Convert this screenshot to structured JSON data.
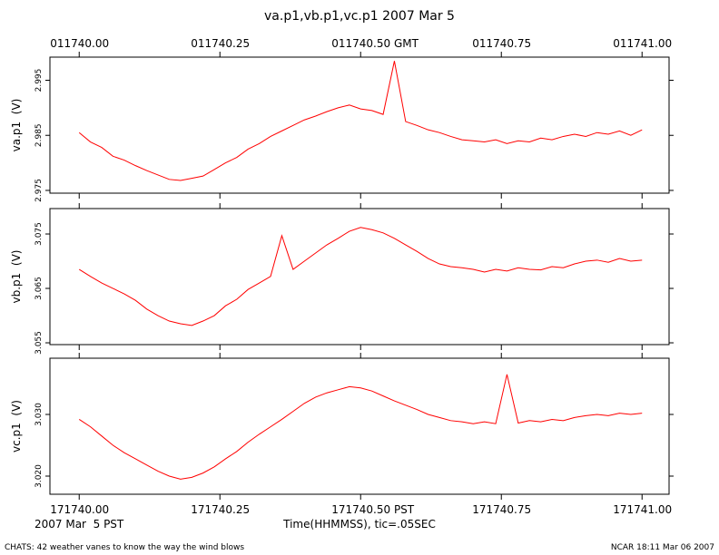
{
  "title": "va.p1,vb.p1,vc.p1 2007 Mar 5",
  "date_label": "2007 Mar  5 PST",
  "footer_left": "CHATS: 42 weather vanes to know the way the wind blows",
  "footer_right": "NCAR 18:11 Mar 06 2007",
  "chart_data": {
    "type": "line",
    "xlabel": "Time(HHMMSS), tic=.05SEC",
    "x": [
      171740,
      171740.02,
      171740.04,
      171740.06,
      171740.08,
      171740.1,
      171740.12,
      171740.14,
      171740.16,
      171740.18,
      171740.2,
      171740.22,
      171740.24,
      171740.26,
      171740.28,
      171740.3,
      171740.32,
      171740.34,
      171740.36,
      171740.38,
      171740.4,
      171740.42,
      171740.44,
      171740.46,
      171740.48,
      171740.5,
      171740.52,
      171740.54,
      171740.56,
      171740.58,
      171740.6,
      171740.62,
      171740.64,
      171740.66,
      171740.68,
      171740.7,
      171740.72,
      171740.74,
      171740.76,
      171740.78,
      171740.8,
      171740.82,
      171740.84,
      171740.86,
      171740.88,
      171740.9,
      171740.92,
      171740.94,
      171740.96,
      171740.98,
      171741
    ],
    "xlim": [
      171739.948,
      171741.048
    ],
    "xticks": [
      {
        "value": 171740,
        "label": "171740.00"
      },
      {
        "value": 171740.25,
        "label": "171740.25"
      },
      {
        "value": 171740.5,
        "label": "171740.50 PST"
      },
      {
        "value": 171740.75,
        "label": "171740.75"
      },
      {
        "value": 171741,
        "label": "171741.00"
      }
    ],
    "x2ticks": [
      {
        "value": 171740,
        "label": "011740.00"
      },
      {
        "value": 171740.25,
        "label": "011740.25"
      },
      {
        "value": 171740.5,
        "label": "011740.50 GMT"
      },
      {
        "value": 171740.75,
        "label": "011740.75"
      },
      {
        "value": 171741,
        "label": "011741.00"
      }
    ],
    "series": [
      {
        "name": "va.p1  (V)",
        "color": "#ff0000",
        "ylim": [
          2.9745,
          2.9992
        ],
        "yticks": [
          2.975,
          2.985,
          2.995
        ],
        "values": [
          2.9855,
          2.9838,
          2.9828,
          2.9812,
          2.9805,
          2.9795,
          2.9786,
          2.9778,
          2.977,
          2.9768,
          2.9772,
          2.9776,
          2.9788,
          2.98,
          2.981,
          2.9825,
          2.9835,
          2.9848,
          2.9858,
          2.9868,
          2.9878,
          2.9885,
          2.9893,
          2.99,
          2.9905,
          2.9898,
          2.9895,
          2.9888,
          2.9985,
          2.9875,
          2.9868,
          2.986,
          2.9855,
          2.9848,
          2.9842,
          2.984,
          2.9838,
          2.9842,
          2.9835,
          2.984,
          2.9838,
          2.9845,
          2.9842,
          2.9848,
          2.9852,
          2.9848,
          2.9855,
          2.9852,
          2.9858,
          2.985,
          2.986
        ]
      },
      {
        "name": "vb.p1  (V)",
        "color": "#ff0000",
        "ylim": [
          3.05467,
          3.07967
        ],
        "yticks": [
          3.055,
          3.065,
          3.075
        ],
        "values": [
          3.0685,
          3.0672,
          3.066,
          3.065,
          3.064,
          3.0628,
          3.0612,
          3.06,
          3.059,
          3.0585,
          3.0582,
          3.059,
          3.06,
          3.0618,
          3.063,
          3.0648,
          3.066,
          3.0672,
          3.0747,
          3.0685,
          3.07,
          3.0715,
          3.073,
          3.0742,
          3.0755,
          3.0762,
          3.0758,
          3.0752,
          3.0742,
          3.073,
          3.0718,
          3.0705,
          3.0695,
          3.069,
          3.0688,
          3.0685,
          3.068,
          3.0685,
          3.0682,
          3.0688,
          3.0685,
          3.0684,
          3.069,
          3.0688,
          3.0695,
          3.07,
          3.0702,
          3.0698,
          3.0705,
          3.07,
          3.0702
        ]
      },
      {
        "name": "vc.p1  (V)",
        "color": "#ff0000",
        "ylim": [
          3.01706,
          3.03912
        ],
        "yticks": [
          {
            "value": 3.02,
            "label": "3.020"
          },
          {
            "value": 3.03,
            "label": "3.030"
          }
        ],
        "values": [
          3.0292,
          3.028,
          3.0265,
          3.025,
          3.0238,
          3.0228,
          3.0218,
          3.0208,
          3.02,
          3.0195,
          3.0198,
          3.0205,
          3.0215,
          3.0228,
          3.024,
          3.0255,
          3.0268,
          3.028,
          3.0292,
          3.0305,
          3.0318,
          3.0328,
          3.0335,
          3.034,
          3.0345,
          3.0343,
          3.0338,
          3.033,
          3.0322,
          3.0315,
          3.0308,
          3.03,
          3.0295,
          3.029,
          3.0288,
          3.0285,
          3.0288,
          3.0285,
          3.0365,
          3.0286,
          3.029,
          3.0288,
          3.0292,
          3.029,
          3.0295,
          3.0298,
          3.03,
          3.0298,
          3.0302,
          3.03,
          3.0302
        ]
      }
    ]
  }
}
